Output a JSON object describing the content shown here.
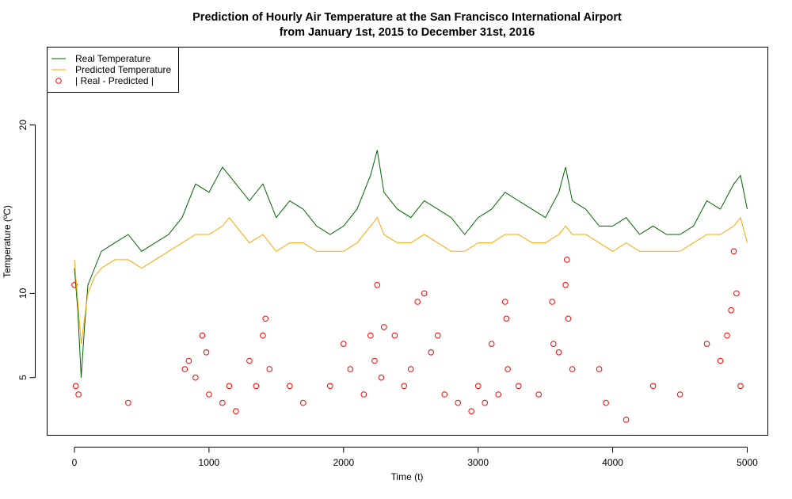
{
  "chart_data": {
    "type": "line",
    "title": "Prediction of Hourly Air Temperature at the San Francisco International Airport",
    "subtitle": "from January 1st, 2015 to December 31st, 2016",
    "xlabel": "Time (t)",
    "ylabel": "Temperature (ºC)",
    "xlim": [
      -200,
      5150
    ],
    "ylim": [
      1.6,
      24.6
    ],
    "x_ticks": [
      0,
      1000,
      2000,
      3000,
      4000,
      5000
    ],
    "y_ticks": [
      5,
      10,
      20
    ],
    "grid": false,
    "legend_position": "top-left",
    "series": [
      {
        "name": "Real Temperature",
        "kind": "line",
        "color": "#006400",
        "x": [
          0,
          25,
          50,
          75,
          100,
          150,
          200,
          300,
          400,
          500,
          600,
          700,
          800,
          900,
          1000,
          1100,
          1150,
          1200,
          1300,
          1400,
          1500,
          1600,
          1700,
          1800,
          1900,
          2000,
          2100,
          2200,
          2250,
          2300,
          2400,
          2500,
          2600,
          2700,
          2800,
          2900,
          3000,
          3100,
          3200,
          3300,
          3400,
          3500,
          3600,
          3650,
          3700,
          3800,
          3900,
          4000,
          4100,
          4200,
          4300,
          4400,
          4500,
          4600,
          4700,
          4800,
          4900,
          4950,
          5000
        ],
        "y": [
          11.5,
          9.0,
          5.0,
          8.0,
          10.5,
          11.5,
          12.5,
          13.0,
          13.5,
          12.5,
          13.0,
          13.5,
          14.5,
          16.5,
          16.0,
          17.5,
          17.0,
          16.5,
          15.5,
          16.5,
          14.5,
          15.5,
          15.0,
          14.0,
          13.5,
          14.0,
          15.0,
          17.0,
          18.5,
          16.0,
          15.0,
          14.5,
          15.5,
          15.0,
          14.5,
          13.5,
          14.5,
          15.0,
          16.0,
          15.5,
          15.0,
          14.5,
          16.0,
          17.5,
          15.5,
          15.0,
          14.0,
          14.0,
          14.5,
          13.5,
          14.0,
          13.5,
          13.5,
          14.0,
          15.5,
          15.0,
          16.5,
          17.0,
          15.0
        ]
      },
      {
        "name": "Predicted Temperature",
        "kind": "line",
        "color": "#FFA500",
        "x": [
          0,
          25,
          50,
          75,
          100,
          150,
          200,
          300,
          400,
          500,
          600,
          700,
          800,
          900,
          1000,
          1100,
          1150,
          1200,
          1300,
          1400,
          1500,
          1600,
          1700,
          1800,
          1900,
          2000,
          2100,
          2200,
          2250,
          2300,
          2400,
          2500,
          2600,
          2700,
          2800,
          2900,
          3000,
          3100,
          3200,
          3300,
          3400,
          3500,
          3600,
          3650,
          3700,
          3800,
          3900,
          4000,
          4100,
          4200,
          4300,
          4400,
          4500,
          4600,
          4700,
          4800,
          4900,
          4950,
          5000
        ],
        "y": [
          12.0,
          9.5,
          7.0,
          8.5,
          10.0,
          11.0,
          11.5,
          12.0,
          12.0,
          11.5,
          12.0,
          12.5,
          13.0,
          13.5,
          13.5,
          14.0,
          14.5,
          14.0,
          13.0,
          13.5,
          12.5,
          13.0,
          13.0,
          12.5,
          12.5,
          12.5,
          13.0,
          14.0,
          14.5,
          13.5,
          13.0,
          13.0,
          13.5,
          13.0,
          12.5,
          12.5,
          13.0,
          13.0,
          13.5,
          13.5,
          13.0,
          13.0,
          13.5,
          14.0,
          13.5,
          13.5,
          13.0,
          12.5,
          13.0,
          12.5,
          12.5,
          12.5,
          12.5,
          13.0,
          13.5,
          13.5,
          14.0,
          14.5,
          13.0
        ]
      },
      {
        "name": "| Real - Predicted |",
        "kind": "points",
        "color": "#FF0000",
        "x": [
          0,
          10,
          30,
          400,
          820,
          850,
          900,
          950,
          980,
          1000,
          1100,
          1150,
          1200,
          1300,
          1350,
          1400,
          1420,
          1450,
          1600,
          1700,
          1900,
          2000,
          2050,
          2150,
          2200,
          2230,
          2250,
          2280,
          2300,
          2380,
          2450,
          2500,
          2550,
          2600,
          2650,
          2700,
          2750,
          2850,
          2950,
          3000,
          3050,
          3100,
          3150,
          3200,
          3210,
          3220,
          3300,
          3450,
          3550,
          3560,
          3600,
          3650,
          3660,
          3670,
          3700,
          3900,
          3950,
          4100,
          4300,
          4500,
          4700,
          4800,
          4850,
          4880,
          4900,
          4920,
          4950
        ],
        "y": [
          10.5,
          4.5,
          4.0,
          3.5,
          5.5,
          6.0,
          5.0,
          7.5,
          6.5,
          4.0,
          3.5,
          4.5,
          3.0,
          6.0,
          4.5,
          7.5,
          8.5,
          5.5,
          4.5,
          3.5,
          4.5,
          7.0,
          5.5,
          4.0,
          7.5,
          6.0,
          10.5,
          5.0,
          8.0,
          7.5,
          4.5,
          5.5,
          9.5,
          10.0,
          6.5,
          7.5,
          4.0,
          3.5,
          3.0,
          4.5,
          3.5,
          7.0,
          4.0,
          9.5,
          8.5,
          5.5,
          4.5,
          4.0,
          9.5,
          7.0,
          6.5,
          10.5,
          12.0,
          8.5,
          5.5,
          5.5,
          3.5,
          2.5,
          4.5,
          4.0,
          7.0,
          6.0,
          7.5,
          9.0,
          12.5,
          10.0,
          4.5
        ]
      }
    ]
  }
}
